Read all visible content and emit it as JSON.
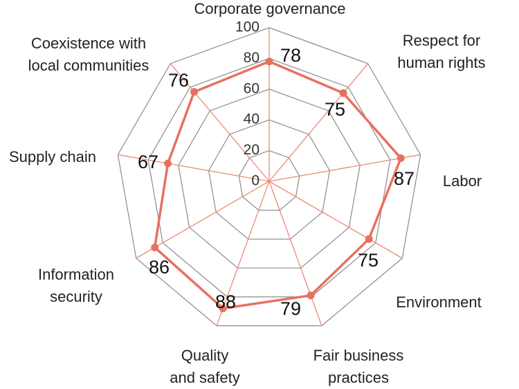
{
  "chart_data": {
    "type": "radar",
    "categories": [
      "Corporate governance",
      "Respect for\nhuman rights",
      "Labor",
      "Environment",
      "Fair business\npractices",
      "Quality\nand safety",
      "Information\nsecurity",
      "Supply chain",
      "Coexistence with\nlocal communities"
    ],
    "values": [
      78,
      75,
      87,
      75,
      79,
      88,
      86,
      67,
      76
    ],
    "color": "#e8705f",
    "ylim": [
      0,
      100
    ],
    "yticks": [
      0,
      20,
      40,
      60,
      80,
      100
    ],
    "grid": true
  }
}
